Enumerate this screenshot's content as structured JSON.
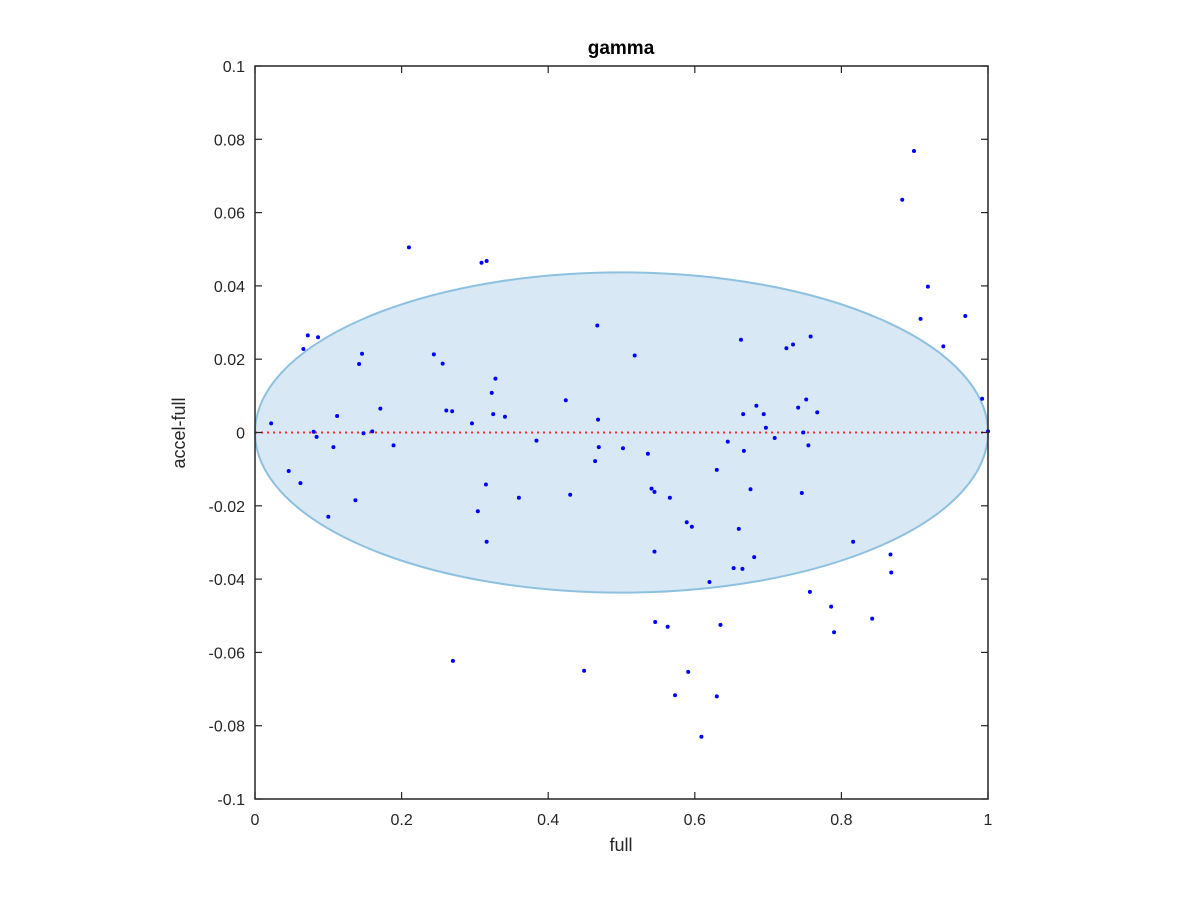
{
  "chart_data": {
    "type": "scatter",
    "title": "gamma",
    "xlabel": "full",
    "ylabel": "accel-full",
    "xlim": [
      0,
      1
    ],
    "ylim": [
      -0.1,
      0.1
    ],
    "xticks": [
      "0",
      "0.2",
      "0.4",
      "0.6",
      "0.8",
      "1"
    ],
    "yticks": [
      "-0.1",
      "-0.08",
      "-0.06",
      "-0.04",
      "-0.02",
      "0",
      "0.02",
      "0.04",
      "0.06",
      "0.08",
      "0.1"
    ],
    "grid": false,
    "ellipse": {
      "center_x": 0.5,
      "center_y": 0.0,
      "semi_axis_x": 0.5,
      "semi_axis_y": 0.0437
    },
    "zero_line": {
      "y": 0,
      "style": "dotted"
    },
    "points": [
      [
        0.022,
        0.0025
      ],
      [
        0.046,
        -0.0105
      ],
      [
        0.062,
        -0.0138
      ],
      [
        0.066,
        0.0228
      ],
      [
        0.072,
        0.0265
      ],
      [
        0.08,
        0.0002
      ],
      [
        0.084,
        -0.0012
      ],
      [
        0.086,
        0.026
      ],
      [
        0.1,
        -0.023
      ],
      [
        0.107,
        -0.004
      ],
      [
        0.112,
        0.0045
      ],
      [
        0.137,
        -0.0185
      ],
      [
        0.142,
        0.0187
      ],
      [
        0.146,
        0.0215
      ],
      [
        0.148,
        -0.0002
      ],
      [
        0.16,
        0.0003
      ],
      [
        0.171,
        0.0065
      ],
      [
        0.189,
        -0.0035
      ],
      [
        0.21,
        0.0505
      ],
      [
        0.244,
        0.0213
      ],
      [
        0.256,
        0.0188
      ],
      [
        0.261,
        0.006
      ],
      [
        0.269,
        0.0058
      ],
      [
        0.27,
        -0.0623
      ],
      [
        0.296,
        0.0025
      ],
      [
        0.304,
        -0.0215
      ],
      [
        0.309,
        0.0463
      ],
      [
        0.316,
        0.0468
      ],
      [
        0.315,
        -0.0142
      ],
      [
        0.316,
        -0.0298
      ],
      [
        0.323,
        0.0108
      ],
      [
        0.325,
        0.005
      ],
      [
        0.328,
        0.0147
      ],
      [
        0.341,
        0.0043
      ],
      [
        0.36,
        -0.0178
      ],
      [
        0.384,
        -0.0022
      ],
      [
        0.424,
        0.0088
      ],
      [
        0.43,
        -0.017
      ],
      [
        0.449,
        -0.065
      ],
      [
        0.464,
        -0.0078
      ],
      [
        0.467,
        0.0292
      ],
      [
        0.468,
        0.0035
      ],
      [
        0.469,
        -0.004
      ],
      [
        0.502,
        -0.0043
      ],
      [
        0.518,
        0.021
      ],
      [
        0.536,
        -0.0058
      ],
      [
        0.541,
        -0.0153
      ],
      [
        0.545,
        -0.0162
      ],
      [
        0.545,
        -0.0325
      ],
      [
        0.546,
        -0.0517
      ],
      [
        0.563,
        -0.053
      ],
      [
        0.566,
        -0.0178
      ],
      [
        0.573,
        -0.0717
      ],
      [
        0.589,
        -0.0245
      ],
      [
        0.591,
        -0.0653
      ],
      [
        0.596,
        -0.0257
      ],
      [
        0.609,
        -0.083
      ],
      [
        0.62,
        -0.0408
      ],
      [
        0.63,
        -0.0102
      ],
      [
        0.63,
        -0.072
      ],
      [
        0.635,
        -0.0525
      ],
      [
        0.645,
        -0.0025
      ],
      [
        0.653,
        -0.037
      ],
      [
        0.66,
        -0.0263
      ],
      [
        0.663,
        0.0253
      ],
      [
        0.665,
        -0.0372
      ],
      [
        0.666,
        0.005
      ],
      [
        0.667,
        -0.005
      ],
      [
        0.676,
        -0.0155
      ],
      [
        0.681,
        -0.034
      ],
      [
        0.684,
        0.0073
      ],
      [
        0.694,
        0.005
      ],
      [
        0.697,
        0.0013
      ],
      [
        0.709,
        -0.0015
      ],
      [
        0.725,
        0.023
      ],
      [
        0.734,
        0.024
      ],
      [
        0.741,
        0.0068
      ],
      [
        0.746,
        -0.0165
      ],
      [
        0.748,
        0.0
      ],
      [
        0.752,
        0.009
      ],
      [
        0.755,
        -0.0035
      ],
      [
        0.757,
        -0.0435
      ],
      [
        0.758,
        0.0262
      ],
      [
        0.767,
        0.0055
      ],
      [
        0.786,
        -0.0475
      ],
      [
        0.79,
        -0.0545
      ],
      [
        0.816,
        -0.0298
      ],
      [
        0.842,
        -0.0508
      ],
      [
        0.867,
        -0.0333
      ],
      [
        0.868,
        -0.0382
      ],
      [
        0.883,
        0.0635
      ],
      [
        0.899,
        0.0768
      ],
      [
        0.908,
        0.031
      ],
      [
        0.918,
        0.0398
      ],
      [
        0.939,
        0.0235
      ],
      [
        0.969,
        0.0318
      ],
      [
        0.992,
        0.0092
      ],
      [
        1.0,
        0.0003
      ]
    ]
  },
  "colors": {
    "ellipse_fill": "#d8e8f4",
    "ellipse_edge": "#8ec1e0",
    "points": "#0000ff",
    "zero_line": "#ff2f2f",
    "axes": "#262626"
  }
}
